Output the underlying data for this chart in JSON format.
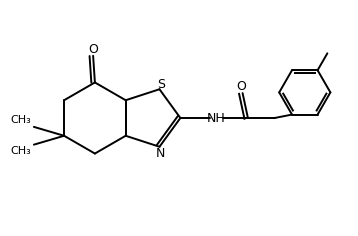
{
  "bg_color": "#ffffff",
  "line_color": "#000000",
  "lw": 1.4,
  "fs": 9,
  "fs_small": 8,
  "fig_width": 3.58,
  "fig_height": 2.36,
  "xlim": [
    0,
    10
  ],
  "ylim": [
    0,
    6.6
  ]
}
